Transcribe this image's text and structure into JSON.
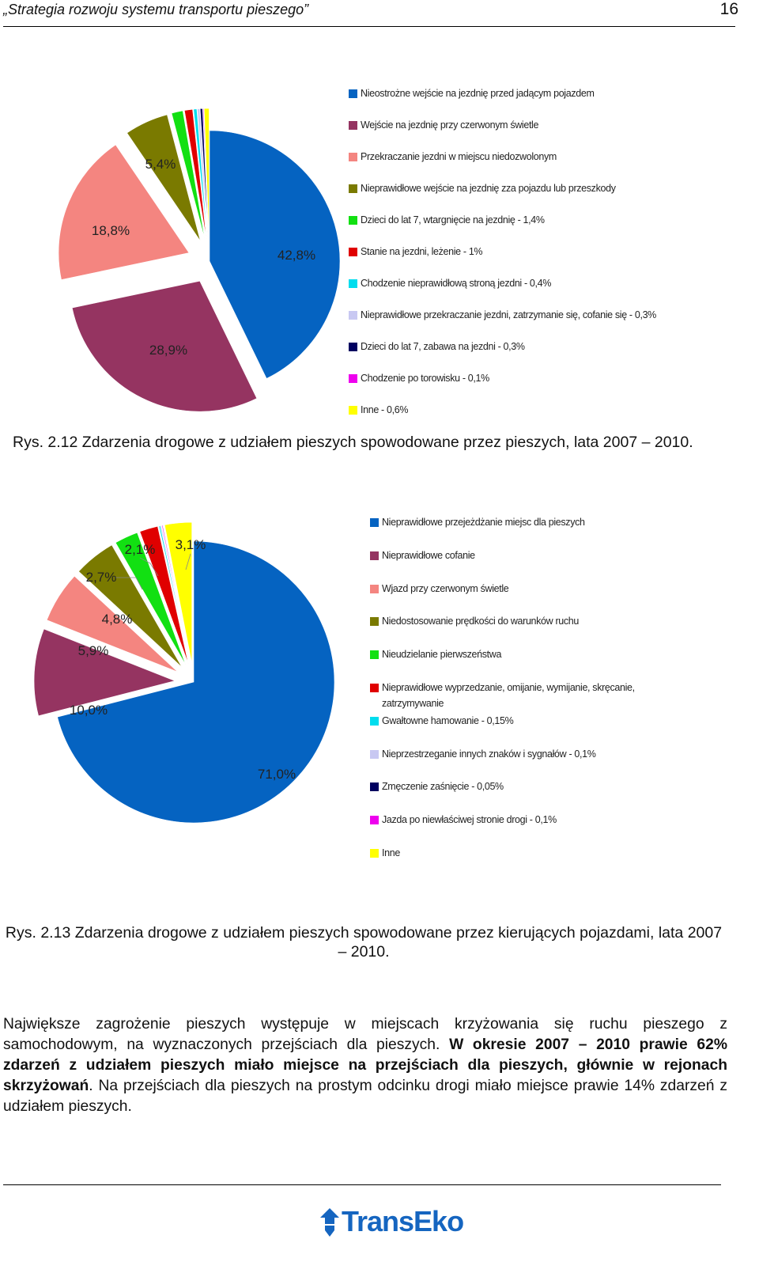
{
  "header": {
    "title": "„Strategia rozwoju systemu transportu pieszego”",
    "page_number": "16"
  },
  "chart_data": [
    {
      "type": "pie",
      "title": "",
      "caption": "Rys. 2.12 Zdarzenia drogowe z udziałem pieszych spowodowane przez pieszych, lata 2007 – 2010.",
      "legend_position": "right",
      "slices": [
        {
          "label": "Nieostrożne wejście na jezdnię przed jadącym pojazdem",
          "value": 42.8,
          "value_label": "42,8%",
          "color": "#0563c1",
          "exploded": false
        },
        {
          "label": "Wejście na jezdnię przy czerwonym świetle",
          "value": 28.9,
          "value_label": "28,9%",
          "color": "#953461",
          "exploded": true
        },
        {
          "label": "Przekraczanie jezdni w miejscu niedozwolonym",
          "value": 18.8,
          "value_label": "18,8%",
          "color": "#f48580",
          "exploded": true
        },
        {
          "label": "Nieprawidłowe wejście na jezdnię zza pojazdu lub przeszkody",
          "value": 5.4,
          "value_label": "5,4%",
          "color": "#7a7a00",
          "exploded": true
        },
        {
          "label": "Dzieci do lat 7, wtargnięcie na jezdnię - 1,4%",
          "value": 1.4,
          "value_label": "",
          "color": "#12e012",
          "exploded": true
        },
        {
          "label": "Stanie na jezdni, leżenie - 1%",
          "value": 1.0,
          "value_label": "",
          "color": "#e00000",
          "exploded": true
        },
        {
          "label": "Chodzenie nieprawidłową stroną jezdni - 0,4%",
          "value": 0.4,
          "value_label": "",
          "color": "#00ddee",
          "exploded": true
        },
        {
          "label": "Nieprawidłowe przekraczanie jezdni, zatrzymanie się, cofanie się - 0,3%",
          "value": 0.3,
          "value_label": "",
          "color": "#c8c8f2",
          "exploded": true
        },
        {
          "label": "Dzieci do lat 7, zabawa na jezdni - 0,3%",
          "value": 0.3,
          "value_label": "",
          "color": "#000060",
          "exploded": true
        },
        {
          "label": "Chodzenie po torowisku - 0,1%",
          "value": 0.1,
          "value_label": "",
          "color": "#ee00ee",
          "exploded": true
        },
        {
          "label": "Inne - 0,6%",
          "value": 0.6,
          "value_label": "",
          "color": "#ffff00",
          "exploded": true
        }
      ]
    },
    {
      "type": "pie",
      "title": "",
      "caption": "Rys. 2.13 Zdarzenia drogowe z udziałem pieszych spowodowane przez kierujących pojazdami, lata 2007 – 2010.",
      "legend_position": "right",
      "slices": [
        {
          "label": "Nieprawidłowe przejeżdżanie miejsc dla pieszych",
          "value": 71.0,
          "value_label": "71,0%",
          "color": "#0563c1",
          "exploded": false
        },
        {
          "label": "Nieprawidłowe cofanie",
          "value": 10.0,
          "value_label": "10,0%",
          "color": "#953461",
          "exploded": true
        },
        {
          "label": "Wjazd przy czerwonym świetle",
          "value": 5.9,
          "value_label": "5,9%",
          "color": "#f48580",
          "exploded": true
        },
        {
          "label": "Niedostosowanie prędkości do warunków ruchu",
          "value": 4.8,
          "value_label": "4,8%",
          "color": "#7a7a00",
          "exploded": true
        },
        {
          "label": "Nieudzielanie pierwszeństwa",
          "value": 2.7,
          "value_label": "2,7%",
          "color": "#12e012",
          "exploded": true
        },
        {
          "label": "Nieprawidłowe wyprzedzanie, omijanie, wymijanie, skręcanie, zatrzymywanie",
          "value": 2.1,
          "value_label": "2,1%",
          "color": "#e00000",
          "exploded": true
        },
        {
          "label": "Gwałtowne hamowanie - 0,15%",
          "value": 0.15,
          "value_label": "",
          "color": "#00ddee",
          "exploded": true
        },
        {
          "label": "Nieprzestrzeganie innych znaków i sygnałów - 0,1%",
          "value": 0.1,
          "value_label": "",
          "color": "#c8c8f2",
          "exploded": true
        },
        {
          "label": "Zmęczenie zaśnięcie - 0,05%",
          "value": 0.05,
          "value_label": "",
          "color": "#000060",
          "exploded": true
        },
        {
          "label": "Jazda po niewłaściwej stronie drogi - 0,1%",
          "value": 0.1,
          "value_label": "",
          "color": "#ee00ee",
          "exploded": true
        },
        {
          "label": "Inne",
          "value": 3.1,
          "value_label": "3,1%",
          "color": "#ffff00",
          "exploded": true
        }
      ]
    }
  ],
  "paragraph": {
    "part1": "Największe zagrożenie pieszych występuje w miejscach krzyżowania się ruchu pieszego z samochodowym, na wyznaczonych przejściach dla pieszych. ",
    "bold": "W okresie 2007 – 2010 prawie 62% zdarzeń z udziałem pieszych miało miejsce na przejściach dla pieszych, głównie w rejonach skrzyżowań",
    "part2": ". Na przejściach dla pieszych na prostym odcinku drogi miało miejsce prawie 14% zdarzeń z udziałem pieszych."
  },
  "footer": {
    "logo_text": "TransEko",
    "logo_color": "#1565c0"
  }
}
